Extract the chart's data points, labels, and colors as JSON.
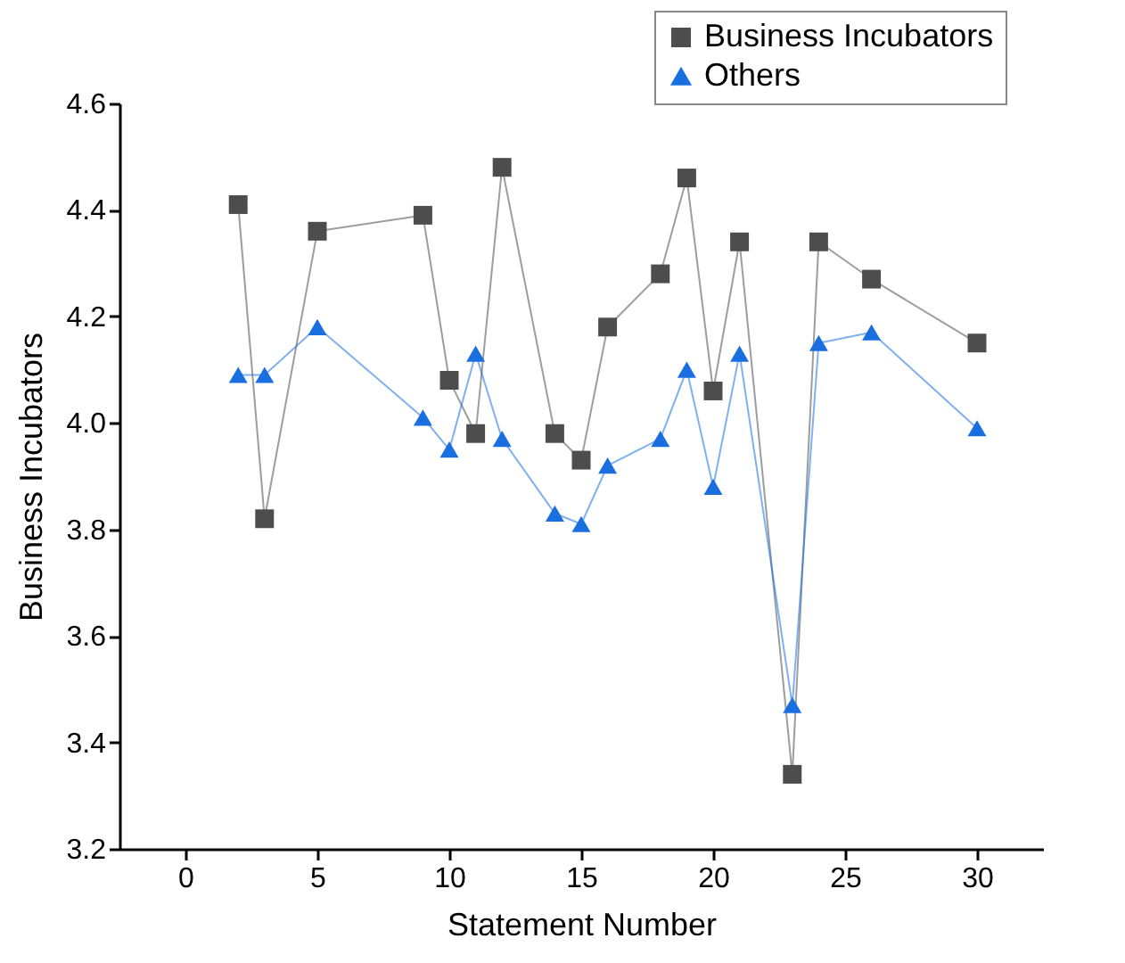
{
  "chart_data": {
    "type": "line",
    "xlabel": "Statement Number",
    "ylabel": "Business Incubators",
    "x": [
      2,
      3,
      5,
      9,
      10,
      11,
      12,
      14,
      15,
      16,
      18,
      19,
      20,
      21,
      23,
      24,
      26,
      30
    ],
    "series": [
      {
        "name": "Business Incubators",
        "color": "#4d4d4d",
        "marker": "square",
        "values": [
          4.41,
          3.82,
          4.36,
          4.39,
          4.08,
          3.98,
          4.48,
          3.98,
          3.93,
          4.18,
          4.28,
          4.46,
          4.06,
          4.34,
          3.34,
          4.34,
          4.27,
          4.15
        ]
      },
      {
        "name": "Others",
        "color": "#1a6fe0",
        "marker": "triangle",
        "values": [
          4.09,
          4.09,
          4.18,
          4.01,
          3.95,
          4.13,
          3.97,
          3.83,
          3.81,
          3.92,
          3.97,
          4.1,
          3.88,
          4.13,
          3.47,
          4.15,
          4.17,
          3.99
        ]
      }
    ],
    "xlim": [
      -2.5,
      32.5
    ],
    "xticks": [
      0,
      5,
      10,
      15,
      20,
      25,
      30
    ],
    "ylim": [
      3.2,
      4.6
    ],
    "yticks": [
      3.2,
      3.4,
      3.6,
      3.8,
      {
        "value": 4,
        "label": "4.0"
      },
      4.2,
      4.4,
      4.6
    ],
    "grid": false,
    "legend": "top right",
    "line_style": "solid"
  }
}
